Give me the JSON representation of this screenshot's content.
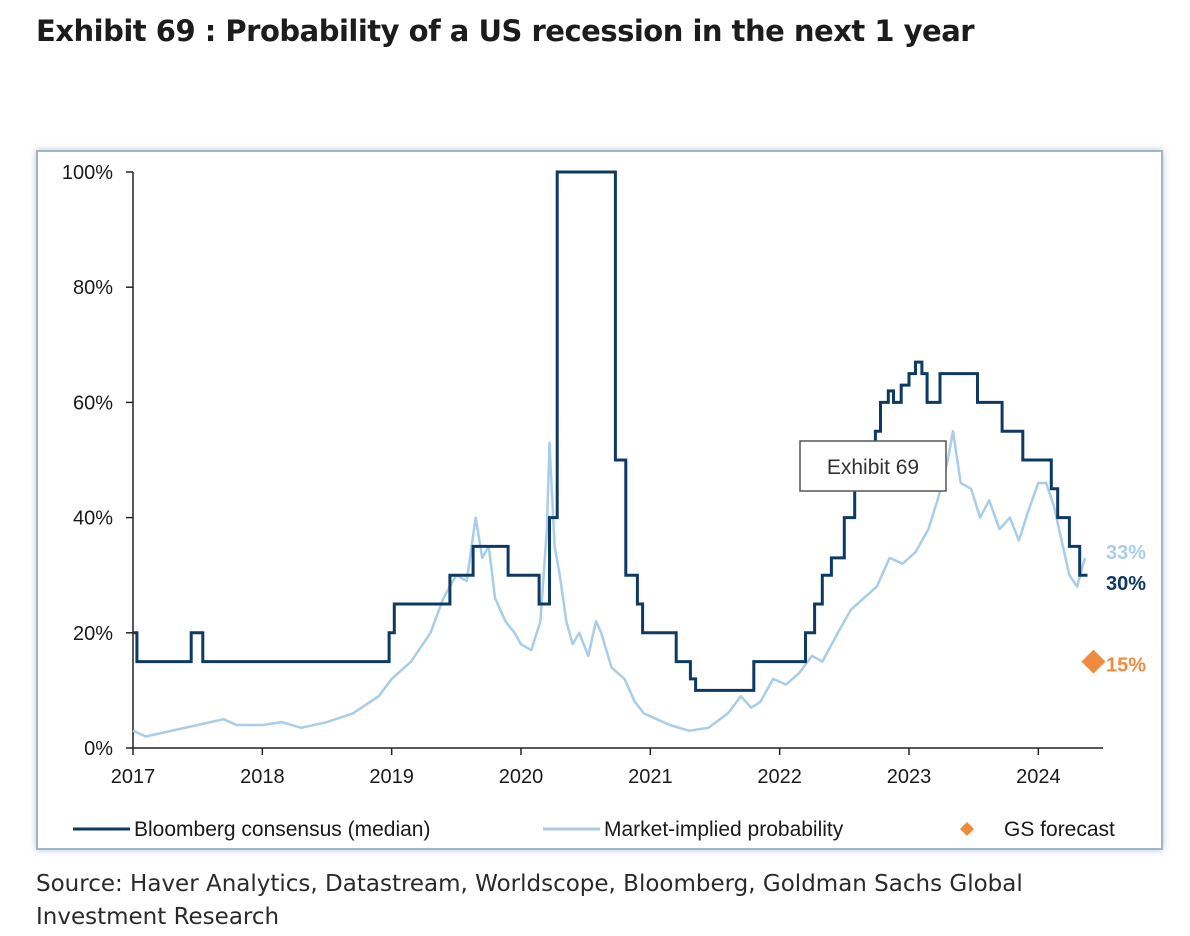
{
  "title": "Exhibit 69 : Probability of a US recession in the next 1 year",
  "source": "Source: Haver Analytics, Datastream, Worldscope, Bloomberg, Goldman Sachs Global Investment Research",
  "colors": {
    "bloomberg": "#0d3a63",
    "market": "#a9cde9",
    "gs": "#f08a3c",
    "frame": "#9fb6c8"
  },
  "chart_data": {
    "type": "line",
    "xlim": [
      2017.0,
      2024.5
    ],
    "ylim": [
      0,
      100
    ],
    "x_ticks": [
      "2017",
      "2018",
      "2019",
      "2020",
      "2021",
      "2022",
      "2023",
      "2024"
    ],
    "x_tick_values": [
      2017,
      2018,
      2019,
      2020,
      2021,
      2022,
      2023,
      2024
    ],
    "y_ticks": [
      "0%",
      "20%",
      "40%",
      "60%",
      "80%",
      "100%"
    ],
    "y_tick_values": [
      0,
      20,
      40,
      60,
      80,
      100
    ],
    "grid": false,
    "legend_position": "bottom",
    "legend": [
      "Bloomberg consensus (median)",
      "Market-implied probability",
      "GS forecast"
    ],
    "annotation": "Exhibit 69",
    "series": [
      {
        "name": "Bloomberg consensus (median)",
        "style": "step",
        "end_label": "30%",
        "points": [
          [
            2017.0,
            20
          ],
          [
            2017.03,
            15
          ],
          [
            2017.42,
            15
          ],
          [
            2017.45,
            20
          ],
          [
            2017.52,
            20
          ],
          [
            2017.54,
            15
          ],
          [
            2018.96,
            15
          ],
          [
            2018.98,
            20
          ],
          [
            2019.02,
            25
          ],
          [
            2019.42,
            25
          ],
          [
            2019.45,
            30
          ],
          [
            2019.6,
            30
          ],
          [
            2019.63,
            35
          ],
          [
            2019.85,
            35
          ],
          [
            2019.9,
            30
          ],
          [
            2020.12,
            30
          ],
          [
            2020.14,
            25
          ],
          [
            2020.2,
            25
          ],
          [
            2020.22,
            40
          ],
          [
            2020.26,
            40
          ],
          [
            2020.28,
            100
          ],
          [
            2020.71,
            100
          ],
          [
            2020.73,
            50
          ],
          [
            2020.79,
            50
          ],
          [
            2020.81,
            30
          ],
          [
            2020.88,
            30
          ],
          [
            2020.9,
            25
          ],
          [
            2020.94,
            20
          ],
          [
            2021.18,
            20
          ],
          [
            2021.2,
            15
          ],
          [
            2021.28,
            15
          ],
          [
            2021.31,
            12
          ],
          [
            2021.35,
            10
          ],
          [
            2021.78,
            10
          ],
          [
            2021.8,
            15
          ],
          [
            2022.18,
            15
          ],
          [
            2022.2,
            20
          ],
          [
            2022.27,
            25
          ],
          [
            2022.33,
            30
          ],
          [
            2022.4,
            33
          ],
          [
            2022.5,
            40
          ],
          [
            2022.58,
            45
          ],
          [
            2022.66,
            50
          ],
          [
            2022.74,
            55
          ],
          [
            2022.78,
            60
          ],
          [
            2022.84,
            62
          ],
          [
            2022.88,
            60
          ],
          [
            2022.94,
            63
          ],
          [
            2023.0,
            65
          ],
          [
            2023.05,
            67
          ],
          [
            2023.1,
            65
          ],
          [
            2023.14,
            60
          ],
          [
            2023.22,
            60
          ],
          [
            2023.24,
            65
          ],
          [
            2023.5,
            65
          ],
          [
            2023.53,
            60
          ],
          [
            2023.68,
            60
          ],
          [
            2023.72,
            55
          ],
          [
            2023.84,
            55
          ],
          [
            2023.88,
            50
          ],
          [
            2024.06,
            50
          ],
          [
            2024.1,
            45
          ],
          [
            2024.15,
            40
          ],
          [
            2024.22,
            40
          ],
          [
            2024.24,
            35
          ],
          [
            2024.3,
            35
          ],
          [
            2024.32,
            30
          ],
          [
            2024.38,
            30
          ]
        ]
      },
      {
        "name": "Market-implied probability",
        "style": "line",
        "end_label": "33%",
        "points": [
          [
            2017.0,
            3
          ],
          [
            2017.1,
            2
          ],
          [
            2017.3,
            3
          ],
          [
            2017.5,
            4
          ],
          [
            2017.6,
            4.5
          ],
          [
            2017.7,
            5
          ],
          [
            2017.8,
            4
          ],
          [
            2018.0,
            4
          ],
          [
            2018.15,
            4.5
          ],
          [
            2018.3,
            3.5
          ],
          [
            2018.5,
            4.5
          ],
          [
            2018.7,
            6
          ],
          [
            2018.9,
            9
          ],
          [
            2019.0,
            12
          ],
          [
            2019.15,
            15
          ],
          [
            2019.3,
            20
          ],
          [
            2019.4,
            26
          ],
          [
            2019.5,
            30
          ],
          [
            2019.58,
            29
          ],
          [
            2019.65,
            40
          ],
          [
            2019.7,
            33
          ],
          [
            2019.75,
            35
          ],
          [
            2019.8,
            26
          ],
          [
            2019.88,
            22
          ],
          [
            2019.95,
            20
          ],
          [
            2020.0,
            18
          ],
          [
            2020.08,
            17
          ],
          [
            2020.15,
            22
          ],
          [
            2020.2,
            38
          ],
          [
            2020.22,
            53
          ],
          [
            2020.26,
            35
          ],
          [
            2020.3,
            30
          ],
          [
            2020.35,
            22
          ],
          [
            2020.4,
            18
          ],
          [
            2020.45,
            20
          ],
          [
            2020.52,
            16
          ],
          [
            2020.58,
            22
          ],
          [
            2020.62,
            20
          ],
          [
            2020.7,
            14
          ],
          [
            2020.8,
            12
          ],
          [
            2020.88,
            8
          ],
          [
            2020.95,
            6
          ],
          [
            2021.05,
            5
          ],
          [
            2021.15,
            4
          ],
          [
            2021.3,
            3
          ],
          [
            2021.45,
            3.5
          ],
          [
            2021.6,
            6
          ],
          [
            2021.7,
            9
          ],
          [
            2021.78,
            7
          ],
          [
            2021.85,
            8
          ],
          [
            2021.95,
            12
          ],
          [
            2022.05,
            11
          ],
          [
            2022.15,
            13
          ],
          [
            2022.25,
            16
          ],
          [
            2022.33,
            15
          ],
          [
            2022.45,
            20
          ],
          [
            2022.55,
            24
          ],
          [
            2022.65,
            26
          ],
          [
            2022.75,
            28
          ],
          [
            2022.85,
            33
          ],
          [
            2022.95,
            32
          ],
          [
            2023.05,
            34
          ],
          [
            2023.15,
            38
          ],
          [
            2023.22,
            43
          ],
          [
            2023.3,
            50
          ],
          [
            2023.34,
            55
          ],
          [
            2023.4,
            46
          ],
          [
            2023.48,
            45
          ],
          [
            2023.55,
            40
          ],
          [
            2023.62,
            43
          ],
          [
            2023.7,
            38
          ],
          [
            2023.78,
            40
          ],
          [
            2023.85,
            36
          ],
          [
            2023.92,
            41
          ],
          [
            2024.0,
            46
          ],
          [
            2024.06,
            46
          ],
          [
            2024.12,
            42
          ],
          [
            2024.18,
            36
          ],
          [
            2024.24,
            30
          ],
          [
            2024.3,
            28
          ],
          [
            2024.36,
            33
          ]
        ]
      },
      {
        "name": "GS forecast",
        "style": "point",
        "end_label": "15%",
        "points": [
          [
            2024.38,
            15
          ]
        ]
      }
    ]
  }
}
